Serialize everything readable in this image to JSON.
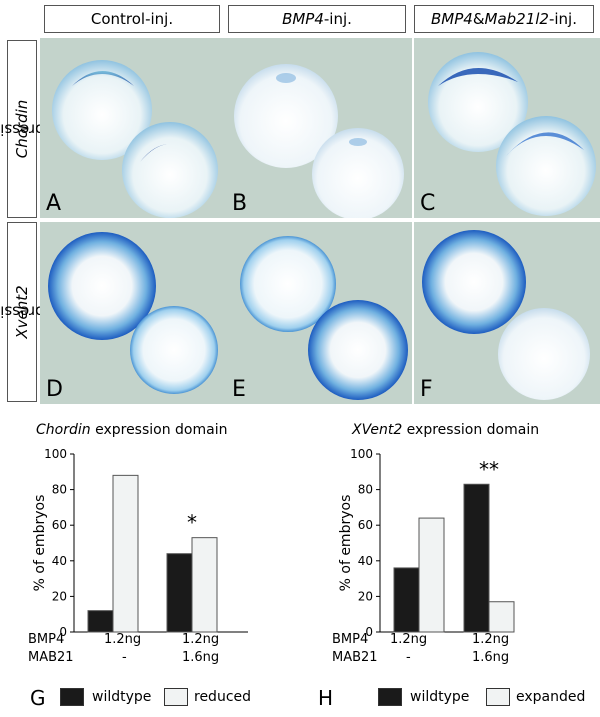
{
  "figure": {
    "columns": [
      {
        "pre": "Control-inj.",
        "em": "",
        "mid": "",
        "post": ""
      },
      {
        "pre": "",
        "em": "BMP4",
        "mid": "",
        "post": "-inj."
      },
      {
        "pre": "",
        "em": "BMP4",
        "mid": " & ",
        "em2": "Mab21l2",
        "post": "-inj."
      }
    ],
    "rows": [
      {
        "em": "Chordin",
        "post": " expression"
      },
      {
        "em": "Xvent2",
        "post": " expression"
      }
    ],
    "panel_letters": [
      "A",
      "B",
      "C",
      "D",
      "E",
      "F"
    ]
  },
  "charts": {
    "condition_labels": {
      "bmp4": "BMP4",
      "mab21": "MAB21"
    },
    "condition_values": {
      "col1_bmp4": "1.2ng",
      "col1_mab21": "-",
      "col2_bmp4": "1.2ng",
      "col2_mab21": "1.6ng"
    }
  },
  "chart_data": [
    {
      "type": "bar",
      "panel": "G",
      "title_em": "Chordin",
      "title_rest": " expression domain",
      "ylabel": "% of embryos",
      "ylim": [
        0,
        100
      ],
      "yticks": [
        "0",
        "20",
        "40",
        "60",
        "80",
        "100"
      ],
      "groups": [
        "1",
        "2"
      ],
      "series": [
        {
          "name": "wildtype",
          "values": [
            12,
            44
          ],
          "color": "#1a1a1a"
        },
        {
          "name": "reduced",
          "values": [
            88,
            53
          ],
          "color": "#f1f3f3"
        }
      ],
      "annotation": "*",
      "annotation_group": 1
    },
    {
      "type": "bar",
      "panel": "H",
      "title_em": "XVent2",
      "title_rest": " expression domain",
      "ylabel": "% of embryos",
      "ylim": [
        0,
        100
      ],
      "yticks": [
        "0",
        "20",
        "40",
        "60",
        "80",
        "100"
      ],
      "groups": [
        "1",
        "2"
      ],
      "series": [
        {
          "name": "wildtype",
          "values": [
            36,
            83
          ],
          "color": "#1a1a1a"
        },
        {
          "name": "expanded",
          "values": [
            64,
            17
          ],
          "color": "#f1f3f3"
        }
      ],
      "annotation": "**",
      "annotation_group": 1
    }
  ],
  "colors": {
    "panel_bg": "#c3d3cb",
    "stain_blue": "#1f63c2",
    "bar_dark": "#1a1a1a",
    "bar_light": "#f1f3f3"
  }
}
